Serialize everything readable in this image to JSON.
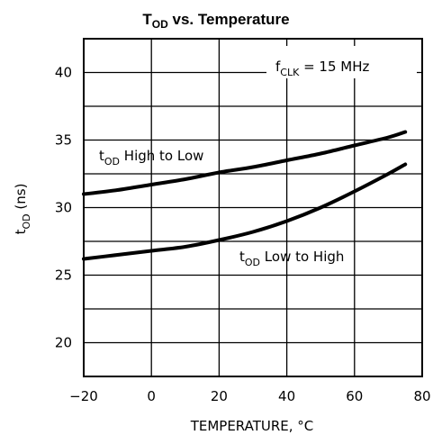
{
  "chart_data": {
    "type": "line",
    "title": {
      "main": "T",
      "subscript": "OD",
      "rest": " vs. Temperature"
    },
    "xlabel": "TEMPERATURE, °C",
    "ylabel": {
      "main": "t",
      "subscript": "OD",
      "rest": " (ns)"
    },
    "xlim": [
      -20,
      80
    ],
    "ylim": [
      17.5,
      42.5
    ],
    "xticks": [
      -20,
      0,
      20,
      40,
      60,
      80
    ],
    "xtick_labels": [
      "−20",
      "0",
      "20",
      "40",
      "60",
      "80"
    ],
    "yticks": [
      20,
      25,
      30,
      35,
      40
    ],
    "ytick_labels": [
      "20",
      "25",
      "30",
      "35",
      "40"
    ],
    "vgrid": [
      0,
      20,
      40,
      60
    ],
    "hgrid": [
      20,
      22.5,
      25,
      27.5,
      30,
      32.5,
      35,
      37.5,
      40
    ],
    "grid": true,
    "condition": {
      "main": "f",
      "subscript": "CLK",
      "rest": " = 15 MHz"
    },
    "series": [
      {
        "name": "t_OD High to Low",
        "label": {
          "main": "t",
          "subscript": "OD",
          "rest": " High to Low"
        },
        "x": [
          -20,
          -10,
          0,
          10,
          20,
          30,
          40,
          50,
          60,
          70,
          75
        ],
        "y": [
          31.0,
          31.3,
          31.7,
          32.1,
          32.6,
          33.0,
          33.5,
          34.0,
          34.6,
          35.2,
          35.6
        ]
      },
      {
        "name": "t_OD Low to High",
        "label": {
          "main": "t",
          "subscript": "OD",
          "rest": " Low to High"
        },
        "x": [
          -20,
          -10,
          0,
          10,
          20,
          30,
          40,
          50,
          60,
          70,
          75
        ],
        "y": [
          26.2,
          26.5,
          26.8,
          27.1,
          27.6,
          28.2,
          29.0,
          30.0,
          31.2,
          32.5,
          33.2
        ]
      }
    ]
  }
}
